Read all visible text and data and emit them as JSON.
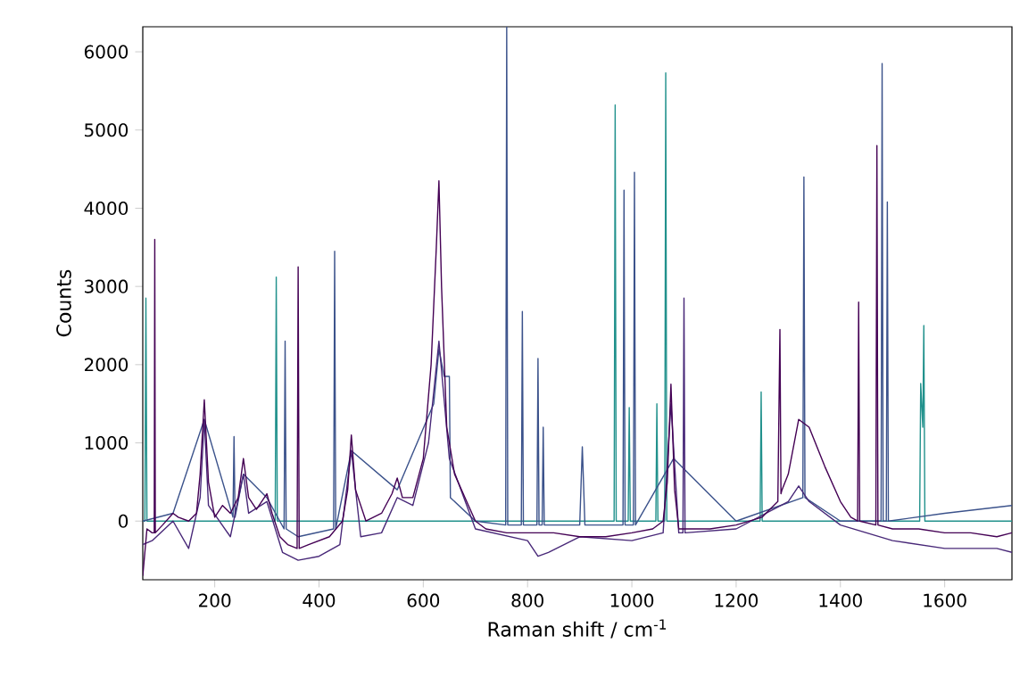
{
  "chart_data": {
    "type": "line",
    "xlabel": "Raman shift / cm$^{-1}$",
    "ylabel": "Counts",
    "xlim": [
      62,
      1729
    ],
    "ylim": [
      -750,
      6320
    ],
    "xticks": [
      200,
      400,
      600,
      800,
      1000,
      1200,
      1400,
      1600
    ],
    "yticks": [
      0,
      1000,
      2000,
      3000,
      4000,
      5000,
      6000
    ],
    "series": [
      {
        "color": "#21918c",
        "x": [
          62,
          66,
          68,
          70,
          316,
          318,
          320,
          966,
          968,
          970,
          993,
          995,
          997,
          1046,
          1048,
          1050,
          1063,
          1065,
          1067,
          1246,
          1248,
          1250,
          1552,
          1554,
          1558,
          1560,
          1562,
          1729
        ],
        "values": [
          0,
          0,
          2850,
          0,
          0,
          3120,
          0,
          0,
          5320,
          0,
          0,
          1450,
          0,
          0,
          1500,
          0,
          0,
          5730,
          0,
          0,
          1650,
          0,
          0,
          1760,
          1200,
          2500,
          0,
          0
        ]
      },
      {
        "color": "#3b528b",
        "x": [
          62,
          120,
          180,
          235,
          237,
          239,
          255,
          300,
          333,
          335,
          337,
          360,
          428,
          430,
          432,
          462,
          550,
          620,
          630,
          640,
          650,
          652,
          700,
          758,
          760,
          762,
          788,
          790,
          792,
          818,
          820,
          822,
          828,
          830,
          832,
          900,
          905,
          910,
          983,
          985,
          987,
          1003,
          1005,
          1007,
          1080,
          1200,
          1328,
          1330,
          1332,
          1400,
          1478,
          1480,
          1482,
          1488,
          1490,
          1492,
          1600,
          1729
        ],
        "values": [
          0,
          100,
          1300,
          50,
          1080,
          50,
          600,
          300,
          -100,
          2300,
          -100,
          -200,
          -100,
          3450,
          -100,
          900,
          400,
          1500,
          2200,
          1850,
          1850,
          300,
          0,
          -50,
          6320,
          -50,
          -50,
          2680,
          -50,
          -50,
          2080,
          -50,
          -50,
          1200,
          -50,
          -50,
          950,
          -50,
          -50,
          4230,
          -50,
          -50,
          4460,
          -50,
          800,
          0,
          300,
          4400,
          300,
          0,
          0,
          5850,
          0,
          0,
          4080,
          0,
          100,
          200
        ]
      },
      {
        "color": "#482878",
        "x": [
          62,
          80,
          120,
          150,
          172,
          180,
          188,
          230,
          255,
          265,
          300,
          330,
          360,
          400,
          440,
          462,
          480,
          520,
          550,
          580,
          610,
          630,
          650,
          700,
          800,
          820,
          840,
          900,
          1000,
          1060,
          1075,
          1090,
          1098,
          1100,
          1102,
          1200,
          1300,
          1320,
          1340,
          1400,
          1500,
          1600,
          1700,
          1729
        ],
        "values": [
          -300,
          -250,
          0,
          -350,
          300,
          1300,
          200,
          -200,
          600,
          100,
          250,
          -400,
          -500,
          -450,
          -300,
          900,
          -200,
          -150,
          300,
          200,
          1000,
          2300,
          800,
          -100,
          -250,
          -450,
          -400,
          -200,
          -250,
          -150,
          1500,
          -150,
          -150,
          2850,
          -150,
          -100,
          250,
          450,
          250,
          -50,
          -250,
          -350,
          -350,
          -400
        ]
      },
      {
        "color": "#440154",
        "x": [
          62,
          70,
          80,
          84,
          85,
          86,
          100,
          120,
          130,
          150,
          165,
          172,
          180,
          188,
          200,
          215,
          230,
          245,
          255,
          265,
          280,
          300,
          310,
          325,
          340,
          358,
          360,
          362,
          380,
          420,
          445,
          455,
          462,
          470,
          490,
          520,
          540,
          550,
          560,
          580,
          600,
          615,
          625,
          630,
          635,
          645,
          660,
          680,
          700,
          720,
          760,
          800,
          850,
          900,
          950,
          1000,
          1040,
          1060,
          1068,
          1075,
          1082,
          1090,
          1150,
          1200,
          1250,
          1280,
          1284,
          1286,
          1288,
          1300,
          1320,
          1340,
          1370,
          1400,
          1420,
          1433,
          1435,
          1437,
          1468,
          1470,
          1472,
          1500,
          1550,
          1600,
          1650,
          1700,
          1729
        ],
        "values": [
          -700,
          -100,
          -150,
          -150,
          3600,
          -150,
          -50,
          100,
          50,
          0,
          100,
          600,
          1550,
          500,
          50,
          200,
          100,
          300,
          800,
          300,
          150,
          350,
          100,
          -200,
          -300,
          -350,
          3250,
          -350,
          -300,
          -200,
          0,
          400,
          1100,
          400,
          0,
          100,
          350,
          550,
          300,
          300,
          800,
          2000,
          3500,
          4350,
          3000,
          1200,
          600,
          300,
          0,
          -100,
          -150,
          -150,
          -150,
          -200,
          -200,
          -150,
          -100,
          0,
          500,
          1750,
          400,
          -100,
          -100,
          -50,
          50,
          250,
          2450,
          350,
          400,
          600,
          1300,
          1200,
          700,
          250,
          50,
          0,
          2800,
          0,
          -50,
          4800,
          -50,
          -100,
          -100,
          -150,
          -150,
          -200,
          -150
        ]
      }
    ]
  }
}
